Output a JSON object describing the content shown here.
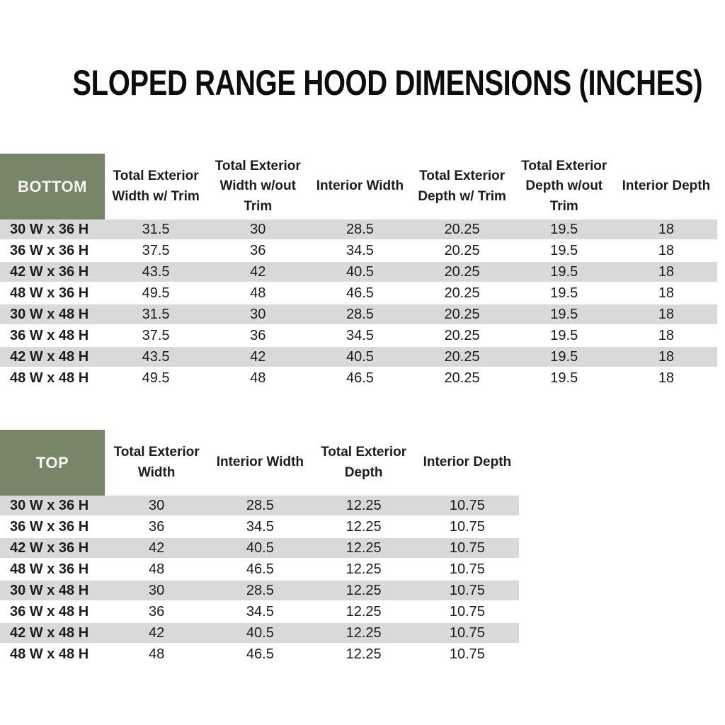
{
  "title": "SLOPED RANGE HOOD DIMENSIONS (INCHES)",
  "colors": {
    "header_green": "#778569",
    "stripe_gray": "#d9d9d9",
    "header_text": "#f5f5f2",
    "body_text": "#1c1c1c"
  },
  "bottom_table": {
    "label": "BOTTOM",
    "columns": [
      "Total Exterior Width w/ Trim",
      "Total Exterior Width w/out Trim",
      "Interior Width",
      "Total Exterior Depth w/ Trim",
      "Total Exterior Depth w/out Trim",
      "Interior Depth"
    ],
    "rows": [
      {
        "label": "30 W x 36 H",
        "values": [
          "31.5",
          "30",
          "28.5",
          "20.25",
          "19.5",
          "18"
        ]
      },
      {
        "label": "36 W x 36 H",
        "values": [
          "37.5",
          "36",
          "34.5",
          "20.25",
          "19.5",
          "18"
        ]
      },
      {
        "label": "42 W x 36 H",
        "values": [
          "43.5",
          "42",
          "40.5",
          "20.25",
          "19.5",
          "18"
        ]
      },
      {
        "label": "48 W x 36 H",
        "values": [
          "49.5",
          "48",
          "46.5",
          "20.25",
          "19.5",
          "18"
        ]
      },
      {
        "label": "30 W x 48 H",
        "values": [
          "31.5",
          "30",
          "28.5",
          "20.25",
          "19.5",
          "18"
        ]
      },
      {
        "label": "36 W x 48 H",
        "values": [
          "37.5",
          "36",
          "34.5",
          "20.25",
          "19.5",
          "18"
        ]
      },
      {
        "label": "42 W x 48 H",
        "values": [
          "43.5",
          "42",
          "40.5",
          "20.25",
          "19.5",
          "18"
        ]
      },
      {
        "label": "48 W x 48 H",
        "values": [
          "49.5",
          "48",
          "46.5",
          "20.25",
          "19.5",
          "18"
        ]
      }
    ]
  },
  "top_table": {
    "label": "TOP",
    "columns": [
      "Total Exterior Width",
      "Interior Width",
      "Total Exterior Depth",
      "Interior Depth"
    ],
    "rows": [
      {
        "label": "30 W x 36 H",
        "values": [
          "30",
          "28.5",
          "12.25",
          "10.75"
        ]
      },
      {
        "label": "36 W x 36 H",
        "values": [
          "36",
          "34.5",
          "12.25",
          "10.75"
        ]
      },
      {
        "label": "42 W x 36 H",
        "values": [
          "42",
          "40.5",
          "12.25",
          "10.75"
        ]
      },
      {
        "label": "48 W x 36 H",
        "values": [
          "48",
          "46.5",
          "12.25",
          "10.75"
        ]
      },
      {
        "label": "30 W x 48 H",
        "values": [
          "30",
          "28.5",
          "12.25",
          "10.75"
        ]
      },
      {
        "label": "36 W x 48 H",
        "values": [
          "36",
          "34.5",
          "12.25",
          "10.75"
        ]
      },
      {
        "label": "42 W x 48 H",
        "values": [
          "42",
          "40.5",
          "12.25",
          "10.75"
        ]
      },
      {
        "label": "48 W x 48 H",
        "values": [
          "48",
          "46.5",
          "12.25",
          "10.75"
        ]
      }
    ]
  }
}
